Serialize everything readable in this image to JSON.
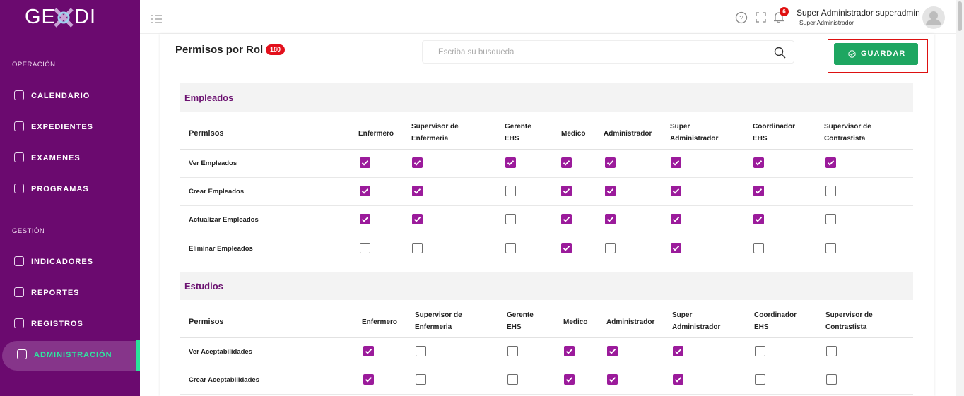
{
  "sidebar": {
    "brand_left": "GE",
    "brand_right": "DI",
    "sections": [
      {
        "title": "OPERACIÓN",
        "items": [
          "CALENDARIO",
          "EXPEDIENTES",
          "EXAMENES",
          "PROGRAMAS"
        ]
      },
      {
        "title": "GESTIÓN",
        "items": [
          "INDICADORES",
          "REPORTES",
          "REGISTROS",
          "ADMINISTRACIÓN"
        ]
      }
    ]
  },
  "topbar": {
    "notifications": 6,
    "user_name": "Super Administrador superadmin",
    "user_role": "Super Administrador"
  },
  "page": {
    "title": "Permisos por Rol",
    "count": 180,
    "search_placeholder": "Escriba su busqueda",
    "save_button": "GUARDAR"
  },
  "sections": [
    {
      "title": "Empleados",
      "header": "Permisos",
      "columns": [
        "Enfermero",
        "Supervisor de Enfermeria",
        "Gerente EHS",
        "Medico",
        "Administrador",
        "Super Administrador",
        "Coordinador EHS",
        "Supervisor de Contrastista"
      ],
      "rows": [
        {
          "label": "Ver Empleados",
          "checked": [
            true,
            true,
            true,
            true,
            true,
            true,
            true,
            true
          ]
        },
        {
          "label": "Crear Empleados",
          "checked": [
            true,
            true,
            false,
            true,
            true,
            true,
            true,
            false
          ]
        },
        {
          "label": "Actualizar Empleados",
          "checked": [
            true,
            true,
            false,
            true,
            true,
            true,
            true,
            false
          ]
        },
        {
          "label": "Eliminar Empleados",
          "checked": [
            false,
            false,
            false,
            true,
            false,
            true,
            false,
            false
          ]
        }
      ]
    },
    {
      "title": "Estudios",
      "header": "Permisos",
      "columns": [
        "Enfermero",
        "Supervisor de Enfermeria",
        "Gerente EHS",
        "Medico",
        "Administrador",
        "Super Administrador",
        "Coordinador EHS",
        "Supervisor de Contrastista"
      ],
      "rows": [
        {
          "label": "Ver Aceptabilidades",
          "checked": [
            true,
            false,
            false,
            true,
            true,
            true,
            false,
            false
          ]
        },
        {
          "label": "Crear Aceptabilidades",
          "checked": [
            true,
            false,
            false,
            true,
            true,
            true,
            false,
            false
          ]
        }
      ]
    }
  ]
}
